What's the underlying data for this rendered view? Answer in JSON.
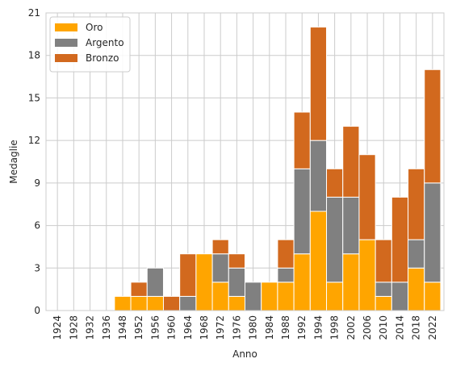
{
  "chart_data": {
    "type": "bar",
    "stacked": true,
    "title": "",
    "xlabel": "Anno",
    "ylabel": "Medaglie",
    "ylim": [
      0,
      21
    ],
    "yticks": [
      0,
      3,
      6,
      9,
      12,
      15,
      18,
      21
    ],
    "grid": true,
    "legend_position": "top-left",
    "categories": [
      "1924",
      "1928",
      "1932",
      "1936",
      "1948",
      "1952",
      "1956",
      "1960",
      "1964",
      "1968",
      "1972",
      "1976",
      "1980",
      "1984",
      "1988",
      "1992",
      "1994",
      "1998",
      "2002",
      "2006",
      "2010",
      "2014",
      "2018",
      "2022"
    ],
    "series": [
      {
        "name": "Oro",
        "color": "#FFA500",
        "values": [
          0,
          0,
          0,
          0,
          1,
          1,
          1,
          0,
          0,
          4,
          2,
          1,
          0,
          2,
          2,
          4,
          7,
          2,
          4,
          5,
          1,
          0,
          3,
          2
        ]
      },
      {
        "name": "Argento",
        "color": "#808080",
        "values": [
          0,
          0,
          0,
          0,
          0,
          0,
          2,
          0,
          1,
          0,
          2,
          2,
          2,
          0,
          1,
          6,
          5,
          6,
          4,
          0,
          1,
          2,
          2,
          7
        ]
      },
      {
        "name": "Bronzo",
        "color": "#D2691E",
        "values": [
          0,
          0,
          0,
          0,
          0,
          1,
          0,
          1,
          3,
          0,
          1,
          1,
          0,
          0,
          2,
          4,
          8,
          2,
          5,
          6,
          3,
          6,
          5,
          8
        ]
      }
    ]
  }
}
